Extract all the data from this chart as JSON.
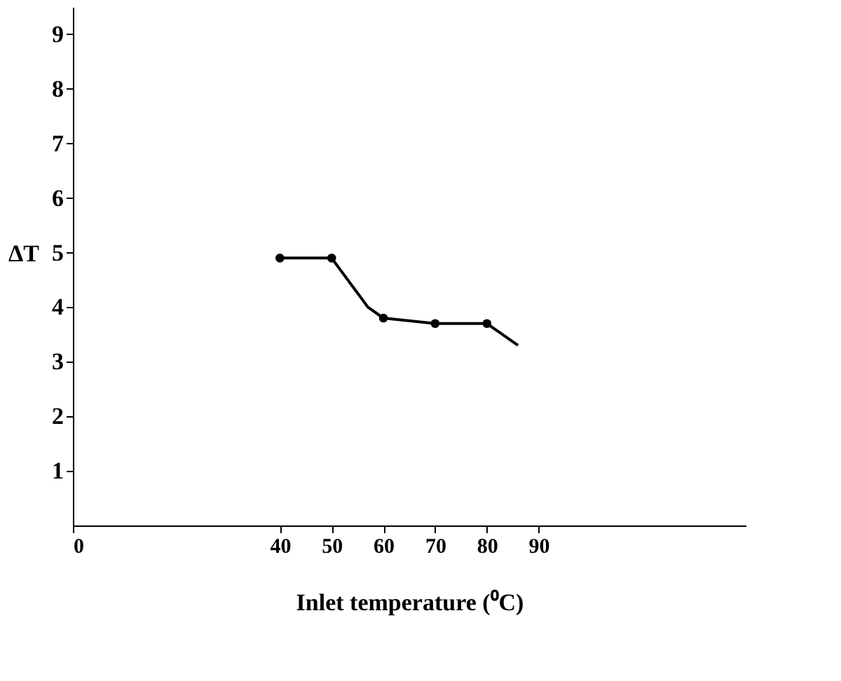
{
  "chart_data": {
    "type": "line",
    "xlabel": "Inlet temperature (⁰C)",
    "ylabel": "ΔT",
    "series": [
      {
        "type": "line",
        "color": "#000000",
        "marker": "none",
        "x": [
          40,
          50,
          57,
          60,
          70,
          80,
          86
        ],
        "values": [
          4.9,
          4.9,
          4.0,
          3.8,
          3.7,
          3.7,
          3.3
        ]
      },
      {
        "type": "scatter",
        "color": "#000000",
        "marker": "circle",
        "x": [
          40,
          50,
          60,
          70,
          80
        ],
        "values": [
          4.9,
          4.9,
          3.8,
          3.7,
          3.7
        ]
      }
    ],
    "xlim": [
      0,
      130
    ],
    "xticks": [
      0,
      40,
      50,
      60,
      70,
      80,
      90
    ],
    "ylim": [
      0,
      9.5
    ],
    "yticks": [
      1,
      2,
      3,
      4,
      5,
      6,
      7,
      8,
      9
    ],
    "grid": false
  }
}
